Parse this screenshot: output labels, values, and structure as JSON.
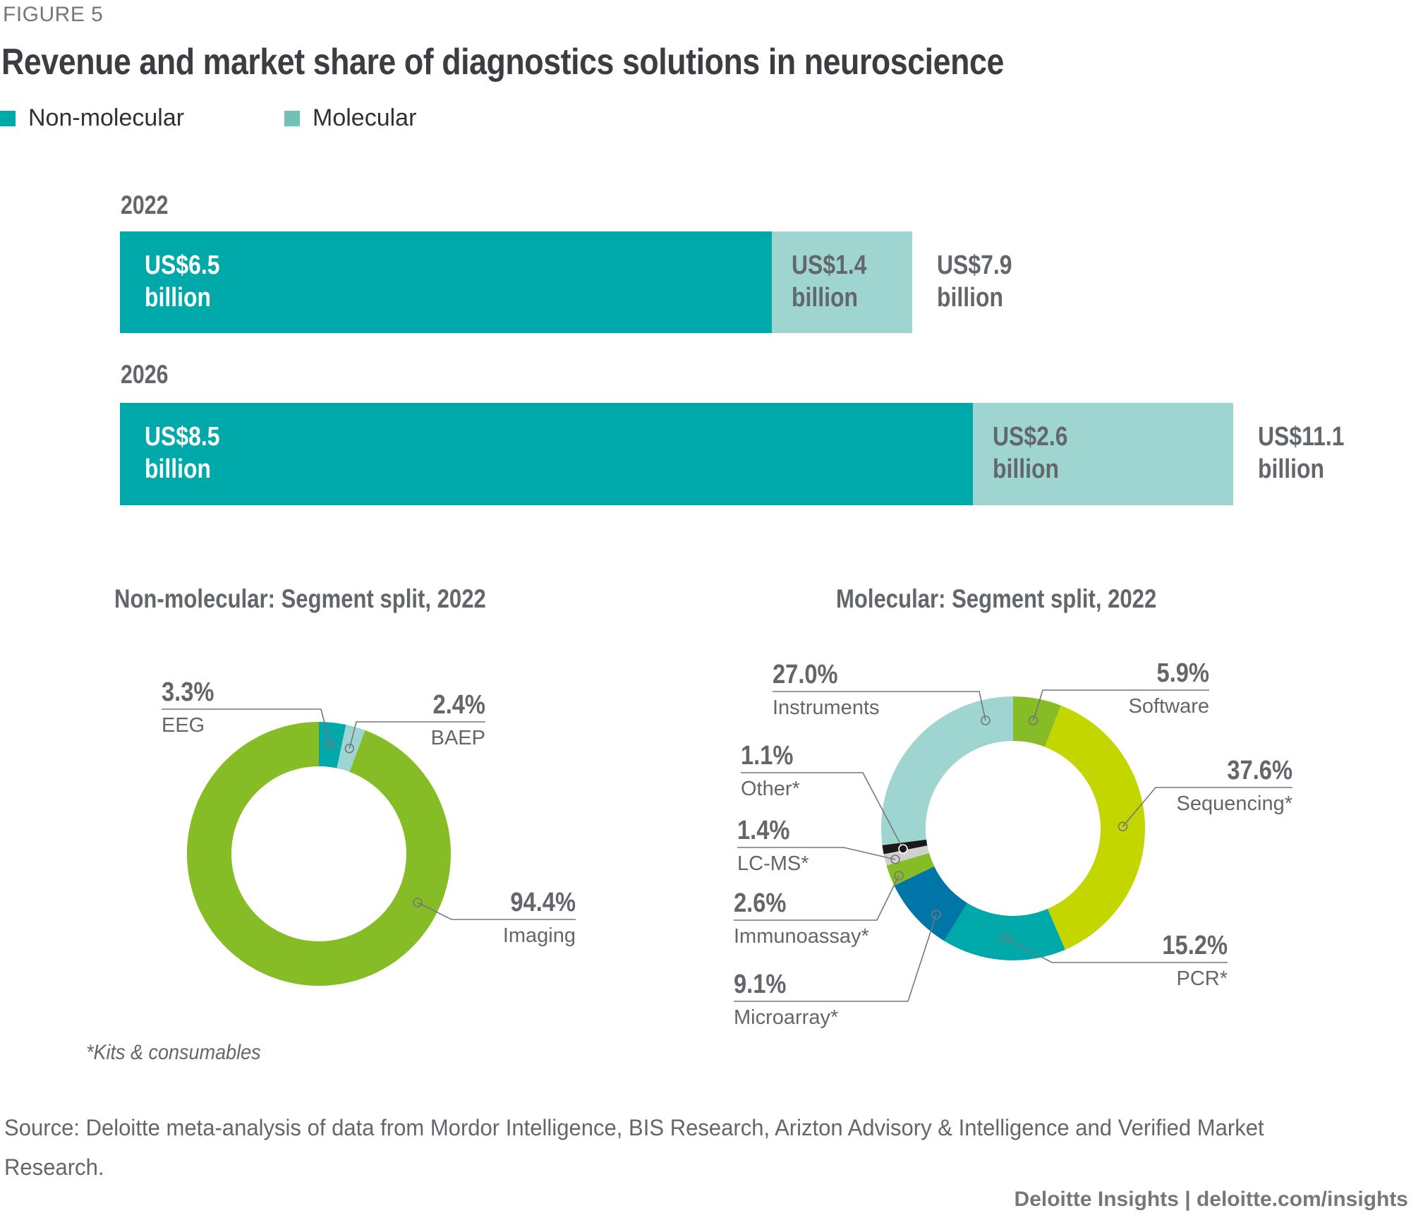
{
  "figure_label": "FIGURE 5",
  "title": "Revenue and market share of diagnostics solutions in neuroscience",
  "legend": [
    {
      "label": "Non-molecular",
      "color": "#00a9a9"
    },
    {
      "label": "Molecular",
      "color": "#6fc2b4"
    }
  ],
  "colors": {
    "non_molecular_bar": "#00a9a9",
    "molecular_bar": "#9fd5d0",
    "text_gray": "#63666a",
    "leader_line": "#75787b"
  },
  "chart_data": [
    {
      "type": "bar",
      "orientation": "horizontal-stacked",
      "categories": [
        "2022",
        "2026"
      ],
      "series": [
        {
          "name": "Non-molecular",
          "values": [
            6.5,
            8.5
          ],
          "labels": [
            "US$6.5 billion",
            "US$8.5 billion"
          ]
        },
        {
          "name": "Molecular",
          "values": [
            1.4,
            2.6
          ],
          "labels": [
            "US$1.4 billion",
            "US$2.6 billion"
          ]
        }
      ],
      "totals": [
        7.9,
        11.1
      ],
      "total_labels": [
        "US$7.9 billion",
        "US$11.1 billion"
      ],
      "unit": "US$ billion",
      "title": "Revenue and market share of diagnostics solutions in neuroscience",
      "xlabel": "",
      "ylabel": "",
      "legend": "top-left",
      "grid": false
    },
    {
      "type": "pie",
      "variant": "donut",
      "title": "Non-molecular: Segment split, 2022",
      "slices": [
        {
          "name": "EEG",
          "value": 3.3,
          "label": "3.3%",
          "color": "#00a9a9"
        },
        {
          "name": "BAEP",
          "value": 2.4,
          "label": "2.4%",
          "color": "#9fd5d0"
        },
        {
          "name": "Imaging",
          "value": 94.4,
          "label": "94.4%",
          "color": "#86bc25"
        }
      ]
    },
    {
      "type": "pie",
      "variant": "donut",
      "title": "Molecular: Segment split, 2022",
      "slices": [
        {
          "name": "Software",
          "value": 5.9,
          "label": "5.9%",
          "color": "#86bc25"
        },
        {
          "name": "Sequencing*",
          "value": 37.6,
          "label": "37.6%",
          "color": "#c4d600"
        },
        {
          "name": "PCR*",
          "value": 15.2,
          "label": "15.2%",
          "color": "#00a9a9"
        },
        {
          "name": "Microarray*",
          "value": 9.1,
          "label": "9.1%",
          "color": "#0076a8"
        },
        {
          "name": "Immunoassay*",
          "value": 2.6,
          "label": "2.6%",
          "color": "#86bc25"
        },
        {
          "name": "LC-MS*",
          "value": 1.4,
          "label": "1.4%",
          "color": "#d0d0ce"
        },
        {
          "name": "Other*",
          "value": 1.1,
          "label": "1.1%",
          "color": "#1a1a1a"
        },
        {
          "name": "Instruments",
          "value": 27.0,
          "label": "27.0%",
          "color": "#9fd5d0"
        }
      ]
    }
  ],
  "bars": {
    "year_2022": "2022",
    "year_2026": "2026",
    "b2022_non_line1": "US$6.5",
    "b2022_non_line2": "billion",
    "b2022_mol_line1": "US$1.4",
    "b2022_mol_line2": "billion",
    "b2022_tot_line1": "US$7.9",
    "b2022_tot_line2": "billion",
    "b2026_non_line1": "US$8.5",
    "b2026_non_line2": "billion",
    "b2026_mol_line1": "US$2.6",
    "b2026_mol_line2": "billion",
    "b2026_tot_line1": "US$11.1",
    "b2026_tot_line2": "billion"
  },
  "footnote": "*Kits & consumables",
  "source": "Source: Deloitte meta-analysis of data from Mordor Intelligence, BIS Research, Arizton Advisory & Intelligence and Verified Market Research.",
  "credit": "Deloitte Insights | deloitte.com/insights"
}
